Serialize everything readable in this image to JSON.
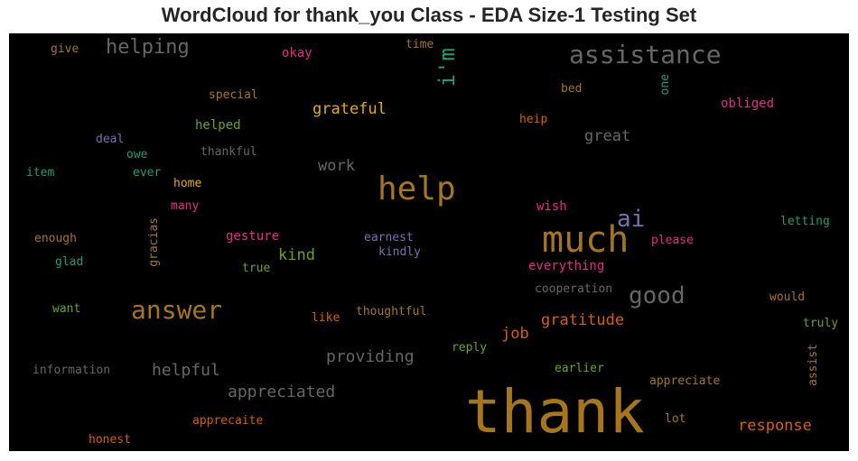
{
  "chart_data": {
    "type": "wordcloud",
    "title": "WordCloud for thank_you Class - EDA Size-1 Testing Set",
    "background": "#000000",
    "words": [
      {
        "text": "thank",
        "color": "#a6761d"
      },
      {
        "text": "help",
        "color": "#a6761d"
      },
      {
        "text": "much",
        "color": "#a6761d"
      },
      {
        "text": "answer",
        "color": "#a6761d"
      },
      {
        "text": "assistance",
        "color": "#666666"
      },
      {
        "text": "good",
        "color": "#666666"
      },
      {
        "text": "helping",
        "color": "#666666"
      },
      {
        "text": "i'm",
        "color": "#1b9e77"
      },
      {
        "text": "ai",
        "color": "#7570b3"
      },
      {
        "text": "appreciated",
        "color": "#666666"
      },
      {
        "text": "helpful",
        "color": "#666666"
      },
      {
        "text": "providing",
        "color": "#666666"
      },
      {
        "text": "grateful",
        "color": "#e6ab02"
      },
      {
        "text": "gratitude",
        "color": "#d95f02"
      },
      {
        "text": "response",
        "color": "#d95f02"
      },
      {
        "text": "great",
        "color": "#666666"
      },
      {
        "text": "work",
        "color": "#666666"
      },
      {
        "text": "kind",
        "color": "#66a61e"
      },
      {
        "text": "job",
        "color": "#d95f02"
      },
      {
        "text": "give",
        "color": "#a6761d"
      },
      {
        "text": "okay",
        "color": "#e7298a"
      },
      {
        "text": "time",
        "color": "#a6761d"
      },
      {
        "text": "one",
        "color": "#1b9e77"
      },
      {
        "text": "bed",
        "color": "#a6761d"
      },
      {
        "text": "obliged",
        "color": "#e7298a"
      },
      {
        "text": "special",
        "color": "#a6761d"
      },
      {
        "text": "helped",
        "color": "#66a61e"
      },
      {
        "text": "heip",
        "color": "#d95f02"
      },
      {
        "text": "deal",
        "color": "#7570b3"
      },
      {
        "text": "thankful",
        "color": "#666666"
      },
      {
        "text": "owe",
        "color": "#1b9e77"
      },
      {
        "text": "item",
        "color": "#1b9e77"
      },
      {
        "text": "ever",
        "color": "#1b9e77"
      },
      {
        "text": "home",
        "color": "#e6ab02"
      },
      {
        "text": "many",
        "color": "#e7298a"
      },
      {
        "text": "wish",
        "color": "#e7298a"
      },
      {
        "text": "letting",
        "color": "#1b9e77"
      },
      {
        "text": "gracias",
        "color": "#a6761d"
      },
      {
        "text": "enough",
        "color": "#a6761d"
      },
      {
        "text": "gesture",
        "color": "#e7298a"
      },
      {
        "text": "earnest",
        "color": "#7570b3"
      },
      {
        "text": "please",
        "color": "#e7298a"
      },
      {
        "text": "kindly",
        "color": "#7570b3"
      },
      {
        "text": "glad",
        "color": "#1b9e77"
      },
      {
        "text": "true",
        "color": "#66a61e"
      },
      {
        "text": "everything",
        "color": "#e7298a"
      },
      {
        "text": "cooperation",
        "color": "#666666"
      },
      {
        "text": "would",
        "color": "#a6761d"
      },
      {
        "text": "want",
        "color": "#66a61e"
      },
      {
        "text": "like",
        "color": "#d95f02"
      },
      {
        "text": "thoughtful",
        "color": "#a6761d"
      },
      {
        "text": "truly",
        "color": "#66a61e"
      },
      {
        "text": "reply",
        "color": "#66a61e"
      },
      {
        "text": "assist",
        "color": "#a6761d"
      },
      {
        "text": "information",
        "color": "#666666"
      },
      {
        "text": "earlier",
        "color": "#66a61e"
      },
      {
        "text": "appreciate",
        "color": "#a6761d"
      },
      {
        "text": "lot",
        "color": "#a6761d"
      },
      {
        "text": "apprecaite",
        "color": "#d95f02"
      },
      {
        "text": "honest",
        "color": "#d95f02"
      }
    ]
  }
}
